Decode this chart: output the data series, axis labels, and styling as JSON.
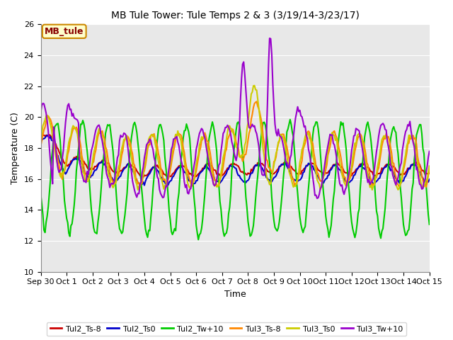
{
  "title": "MB Tule Tower: Tule Temps 2 & 3 (3/19/14-3/23/17)",
  "xlabel": "Time",
  "ylabel": "Temperature (C)",
  "xlim": [
    0,
    15
  ],
  "ylim": [
    10,
    26
  ],
  "yticks": [
    10,
    12,
    14,
    16,
    18,
    20,
    22,
    24,
    26
  ],
  "xtick_labels": [
    "Sep 30",
    "Oct 1",
    "Oct 2",
    "Oct 3",
    "Oct 4",
    "Oct 5",
    "Oct 6",
    "Oct 7",
    "Oct 8",
    "Oct 9",
    "Oct 10",
    "Oct 11",
    "Oct 12",
    "Oct 13",
    "Oct 14",
    "Oct 15"
  ],
  "xtick_positions": [
    0,
    1,
    2,
    3,
    4,
    5,
    6,
    7,
    8,
    9,
    10,
    11,
    12,
    13,
    14,
    15
  ],
  "series_order": [
    "Tul2_Ts-8",
    "Tul2_Ts0",
    "Tul2_Tw+10",
    "Tul3_Ts-8",
    "Tul3_Ts0",
    "Tul3_Tw+10"
  ],
  "series": {
    "Tul2_Ts-8": {
      "color": "#cc0000",
      "linewidth": 1.5
    },
    "Tul2_Ts0": {
      "color": "#0000cc",
      "linewidth": 1.5
    },
    "Tul2_Tw+10": {
      "color": "#00cc00",
      "linewidth": 1.5
    },
    "Tul3_Ts-8": {
      "color": "#ff8800",
      "linewidth": 1.5
    },
    "Tul3_Ts0": {
      "color": "#cccc00",
      "linewidth": 1.5
    },
    "Tul3_Tw+10": {
      "color": "#9900cc",
      "linewidth": 1.5
    }
  },
  "background_color": "#e8e8e8",
  "fig_bg": "#ffffff",
  "legend_label": "MB_tule",
  "legend_bg": "#ffffcc",
  "legend_border": "#cc8800",
  "legend_text_color": "#880000",
  "title_fontsize": 10,
  "axis_fontsize": 9,
  "tick_fontsize": 8,
  "legend_fontsize": 8,
  "grid_color": "#ffffff",
  "grid_linewidth": 0.8
}
